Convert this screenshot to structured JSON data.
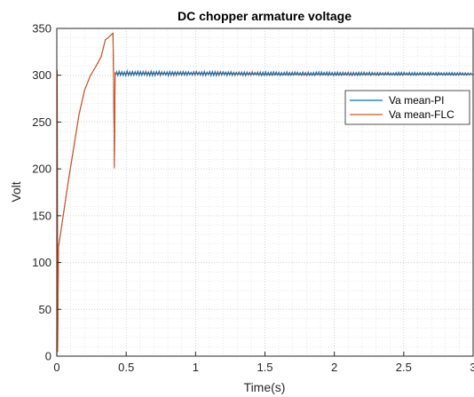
{
  "chart_data": {
    "type": "line",
    "title": "DC chopper armature voltage",
    "xlabel": "Time(s)",
    "ylabel": "Volt",
    "xlim": [
      0,
      3
    ],
    "ylim": [
      0,
      350
    ],
    "xticks": [
      0,
      0.5,
      1,
      1.5,
      2,
      2.5,
      3
    ],
    "xtick_labels": [
      "0",
      "0.5",
      "1",
      "1.5",
      "2",
      "2.5",
      "3"
    ],
    "yticks": [
      0,
      50,
      100,
      150,
      200,
      250,
      300,
      350
    ],
    "ytick_labels": [
      "0",
      "50",
      "100",
      "150",
      "200",
      "250",
      "300",
      "350"
    ],
    "grid": "dotted major and minor",
    "legend_position": "upper-right",
    "series": [
      {
        "name": "Va mean-PI",
        "color": "#0072BD",
        "x": [
          0,
          0.003,
          0.006,
          0.012,
          0.02,
          0.04,
          0.08,
          0.12,
          0.16,
          0.2,
          0.24,
          0.28,
          0.32,
          0.35,
          0.37,
          0.39,
          0.405,
          0.41,
          0.415,
          0.42,
          0.43,
          0.5,
          0.7,
          0.9,
          1.2,
          1.5,
          1.8,
          2.1,
          2.4,
          2.7,
          3.0
        ],
        "y": [
          0,
          305,
          5,
          117,
          124,
          144,
          184,
          221,
          258,
          284,
          299,
          309,
          320,
          338,
          340,
          343,
          345,
          290,
          203,
          300,
          302,
          302,
          302,
          302,
          302,
          301,
          301,
          301,
          301,
          301,
          301
        ]
      },
      {
        "name": "Va mean-FLC",
        "color": "#D95319",
        "x": [
          0,
          0.003,
          0.006,
          0.012,
          0.02,
          0.04,
          0.08,
          0.12,
          0.16,
          0.2,
          0.24,
          0.28,
          0.32,
          0.35,
          0.37,
          0.39,
          0.405,
          0.41,
          0.415,
          0.42,
          0.43,
          0.5,
          0.7,
          0.9,
          1.2,
          1.5,
          1.8,
          2.1,
          2.4,
          2.7,
          3.0
        ],
        "y": [
          0,
          305,
          5,
          117,
          124,
          144,
          184,
          221,
          258,
          284,
          299,
          309,
          320,
          338,
          340,
          343,
          345,
          290,
          201,
          303,
          302,
          302,
          302,
          302,
          302,
          301,
          301,
          301,
          301,
          301,
          301
        ]
      }
    ],
    "noise_region": {
      "x_start": 0.43,
      "x_end": 3.0,
      "y_low": 299,
      "y_high": 305
    }
  }
}
